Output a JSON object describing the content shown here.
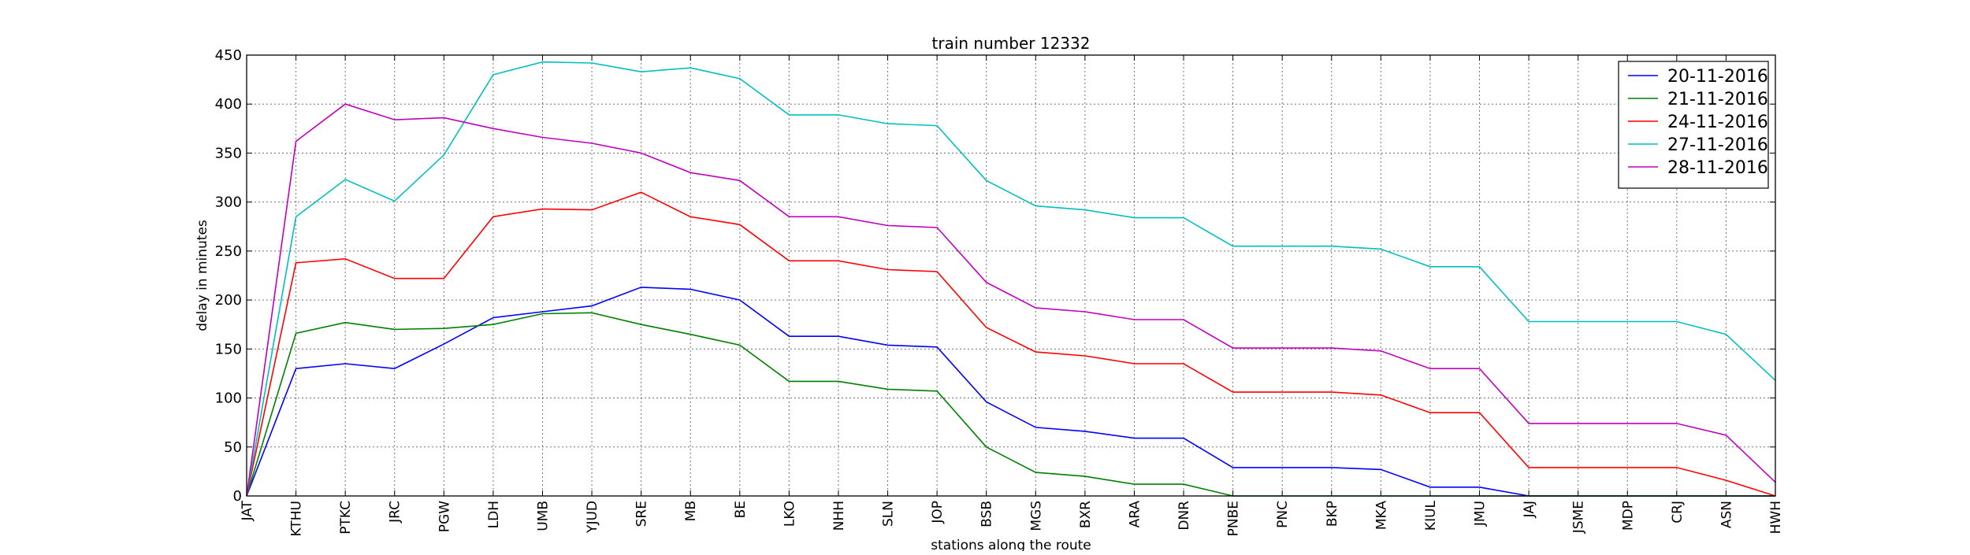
{
  "chart_data": {
    "type": "line",
    "title": "train number 12332",
    "xlabel": "stations along the route",
    "ylabel": "delay in minutes",
    "ylim": [
      0,
      450
    ],
    "yticks": [
      0,
      50,
      100,
      150,
      200,
      250,
      300,
      350,
      400,
      450
    ],
    "grid": true,
    "legend_position": "top-right",
    "categories": [
      "JAT",
      "KTHU",
      "PTKC",
      "JRC",
      "PGW",
      "LDH",
      "UMB",
      "YJUD",
      "SRE",
      "MB",
      "BE",
      "LKO",
      "NHH",
      "SLN",
      "JOP",
      "BSB",
      "MGS",
      "BXR",
      "ARA",
      "DNR",
      "PNBE",
      "PNC",
      "BKP",
      "MKA",
      "KIUL",
      "JMU",
      "JAJ",
      "JSME",
      "MDP",
      "CRJ",
      "ASN",
      "HWH"
    ],
    "series": [
      {
        "name": "20-11-2016",
        "color": "#0000ff",
        "values": [
          0,
          130,
          135,
          130,
          155,
          182,
          188,
          194,
          213,
          211,
          200,
          163,
          163,
          154,
          152,
          96,
          70,
          66,
          59,
          59,
          29,
          29,
          29,
          27,
          9,
          9,
          0,
          0,
          0,
          0,
          0,
          0
        ]
      },
      {
        "name": "21-11-2016",
        "color": "#008000",
        "values": [
          0,
          166,
          177,
          170,
          171,
          175,
          186,
          187,
          175,
          165,
          154,
          117,
          117,
          109,
          107,
          50,
          24,
          20,
          12,
          12,
          0,
          0,
          0,
          0,
          0,
          0,
          0,
          0,
          0,
          0,
          0,
          0
        ]
      },
      {
        "name": "24-11-2016",
        "color": "#ff0000",
        "values": [
          0,
          238,
          242,
          222,
          222,
          285,
          293,
          292,
          310,
          285,
          277,
          240,
          240,
          231,
          229,
          172,
          147,
          143,
          135,
          135,
          106,
          106,
          106,
          103,
          85,
          85,
          29,
          29,
          29,
          29,
          16,
          0
        ]
      },
      {
        "name": "27-11-2016",
        "color": "#00bfbf",
        "values": [
          0,
          285,
          323,
          301,
          348,
          430,
          443,
          442,
          433,
          437,
          426,
          389,
          389,
          380,
          378,
          322,
          296,
          292,
          284,
          284,
          255,
          255,
          255,
          252,
          234,
          234,
          178,
          178,
          178,
          178,
          165,
          118
        ]
      },
      {
        "name": "28-11-2016",
        "color": "#bf00bf",
        "values": [
          0,
          362,
          400,
          384,
          386,
          375,
          366,
          360,
          350,
          330,
          322,
          285,
          285,
          276,
          274,
          218,
          192,
          188,
          180,
          180,
          151,
          151,
          151,
          148,
          130,
          130,
          74,
          74,
          74,
          74,
          62,
          14
        ]
      }
    ]
  }
}
